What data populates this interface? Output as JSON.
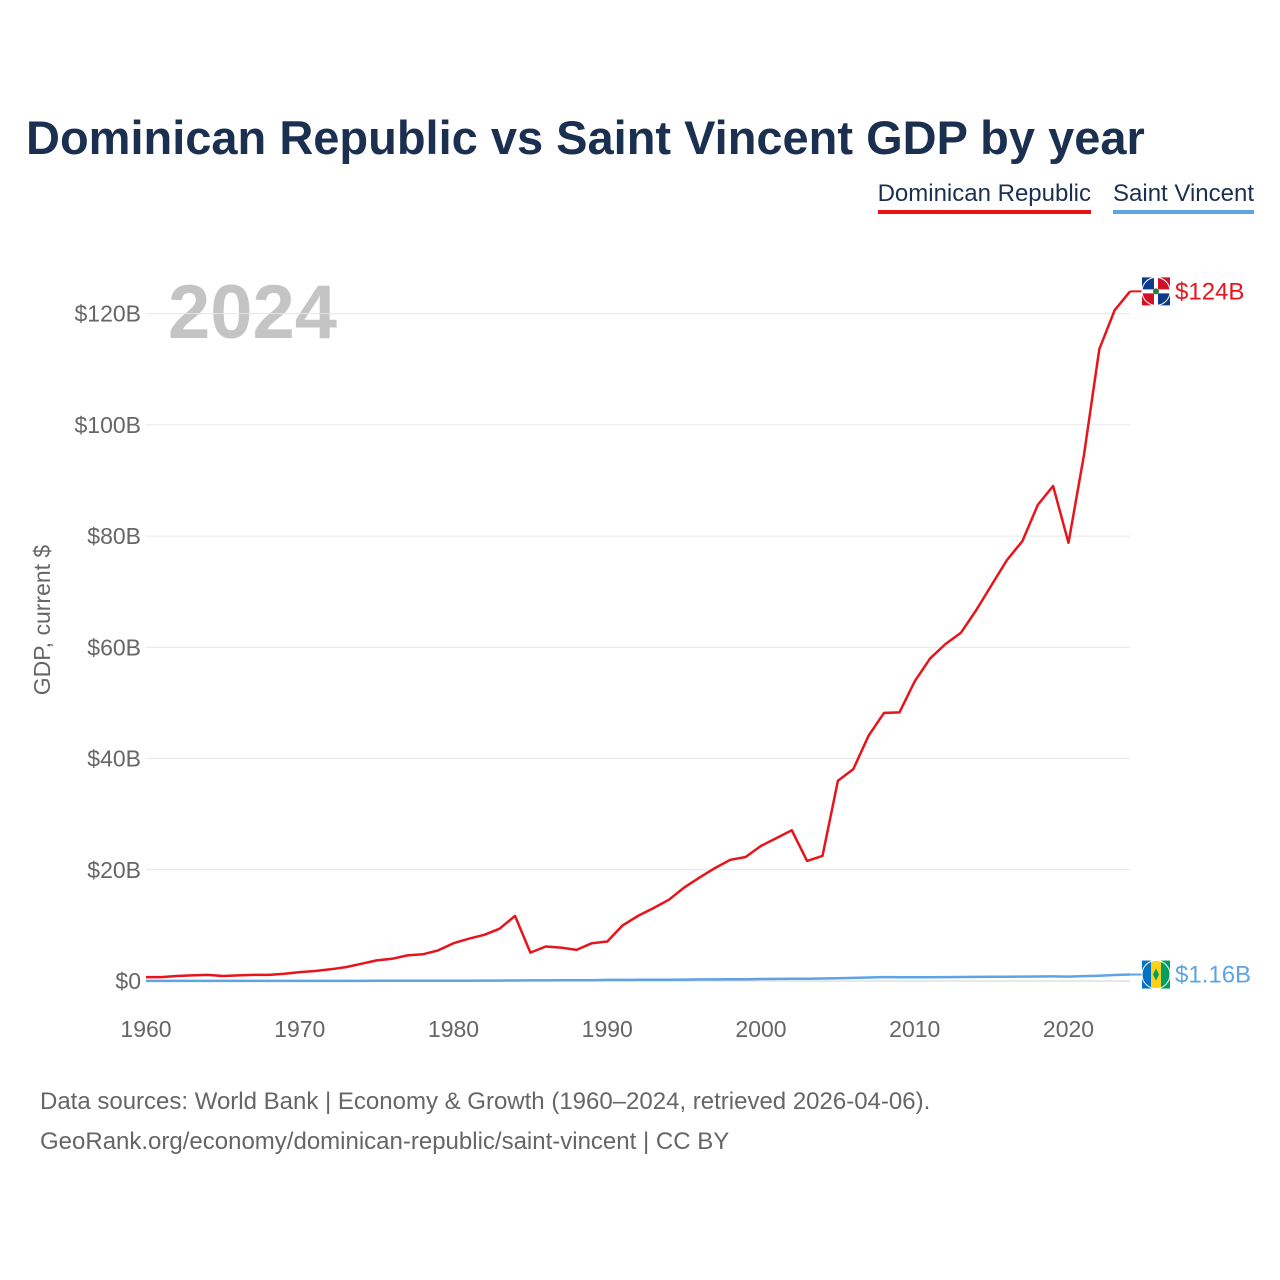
{
  "header": {
    "title": "Dominican Republic vs Saint Vincent GDP by year"
  },
  "legend": {
    "items": [
      "Dominican Republic",
      "Saint Vincent"
    ]
  },
  "colors": {
    "dominican_republic": "#e8141c",
    "saint_vincent": "#5ea3e6",
    "title": "#1b3050"
  },
  "footer": {
    "line1": "Data sources: World Bank | Economy & Growth (1960–2024, retrieved 2026-04-06).",
    "line2": "GeoRank.org/economy/dominican-republic/saint-vincent | CC BY"
  },
  "chart_data": {
    "type": "line",
    "title": "Dominican Republic vs Saint Vincent GDP by year",
    "year_label": "2024",
    "ylabel": "GDP, current $",
    "xlabel": "",
    "xlim": [
      1960,
      2024
    ],
    "ylim": [
      0,
      130
    ],
    "y_unit": "billion USD",
    "x_ticks": [
      1960,
      1970,
      1980,
      1990,
      2000,
      2010,
      2020
    ],
    "y_ticks": [
      0,
      20,
      40,
      60,
      80,
      100,
      120
    ],
    "y_tick_labels": [
      "$0",
      "$20B",
      "$40B",
      "$60B",
      "$80B",
      "$100B",
      "$120B"
    ],
    "x": [
      1960,
      1961,
      1962,
      1963,
      1964,
      1965,
      1966,
      1967,
      1968,
      1969,
      1970,
      1971,
      1972,
      1973,
      1974,
      1975,
      1976,
      1977,
      1978,
      1979,
      1980,
      1981,
      1982,
      1983,
      1984,
      1985,
      1986,
      1987,
      1988,
      1989,
      1990,
      1991,
      1992,
      1993,
      1994,
      1995,
      1996,
      1997,
      1998,
      1999,
      2000,
      2001,
      2002,
      2003,
      2004,
      2005,
      2006,
      2007,
      2008,
      2009,
      2010,
      2011,
      2012,
      2013,
      2014,
      2015,
      2016,
      2017,
      2018,
      2019,
      2020,
      2021,
      2022,
      2023,
      2024
    ],
    "series": [
      {
        "name": "Dominican Republic",
        "color": "#e8141c",
        "end_label": "$124B",
        "values": [
          0.7,
          0.7,
          0.9,
          1.0,
          1.1,
          0.9,
          1.0,
          1.1,
          1.1,
          1.3,
          1.6,
          1.8,
          2.1,
          2.5,
          3.1,
          3.7,
          4.0,
          4.6,
          4.8,
          5.5,
          6.8,
          7.6,
          8.3,
          9.4,
          11.7,
          5.1,
          6.2,
          6.0,
          5.6,
          6.8,
          7.1,
          10.0,
          11.7,
          13.1,
          14.6,
          16.8,
          18.6,
          20.3,
          21.8,
          22.3,
          24.3,
          25.7,
          27.1,
          21.6,
          22.5,
          36.0,
          38.1,
          44.1,
          48.2,
          48.3,
          53.9,
          58.0,
          60.6,
          62.6,
          66.7,
          71.2,
          75.7,
          79.1,
          85.6,
          89.0,
          78.8,
          94.5,
          113.6,
          120.6,
          124.0
        ]
      },
      {
        "name": "Saint Vincent",
        "color": "#5ea3e6",
        "end_label": "$1.16B",
        "values": [
          0.01,
          0.01,
          0.01,
          0.01,
          0.01,
          0.01,
          0.01,
          0.01,
          0.01,
          0.01,
          0.02,
          0.02,
          0.02,
          0.02,
          0.02,
          0.03,
          0.03,
          0.03,
          0.04,
          0.05,
          0.05,
          0.06,
          0.07,
          0.08,
          0.09,
          0.1,
          0.11,
          0.12,
          0.14,
          0.15,
          0.19,
          0.2,
          0.22,
          0.22,
          0.23,
          0.26,
          0.28,
          0.29,
          0.31,
          0.33,
          0.36,
          0.38,
          0.4,
          0.42,
          0.45,
          0.49,
          0.55,
          0.63,
          0.7,
          0.67,
          0.68,
          0.68,
          0.7,
          0.72,
          0.73,
          0.76,
          0.77,
          0.79,
          0.81,
          0.83,
          0.8,
          0.88,
          0.95,
          1.08,
          1.16
        ]
      }
    ]
  }
}
